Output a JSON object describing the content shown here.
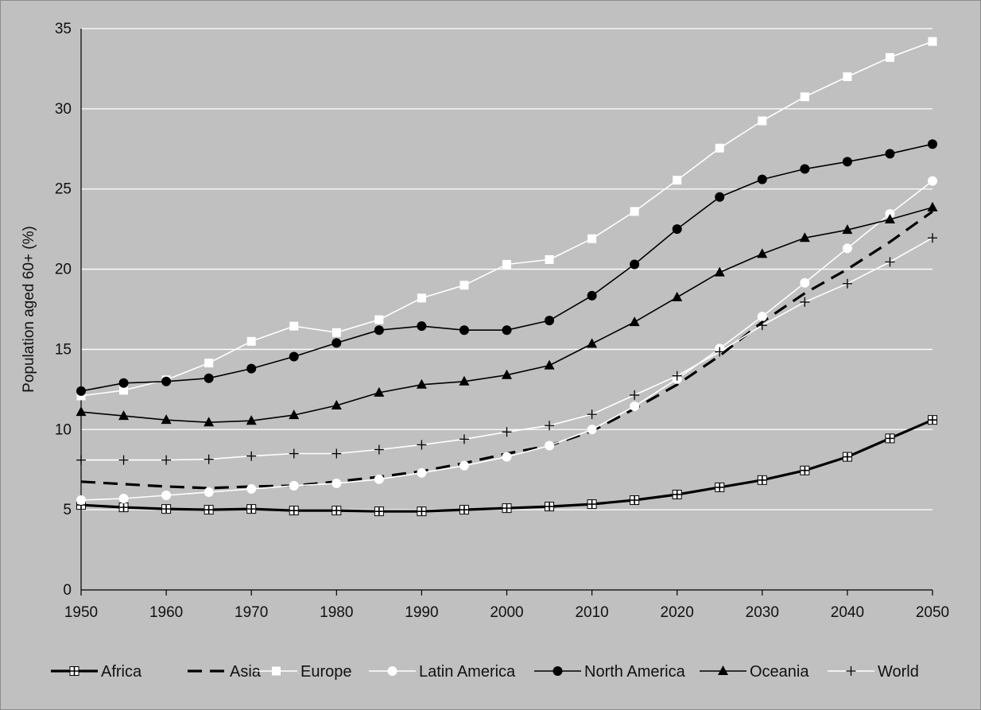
{
  "chart_data": {
    "type": "line",
    "ylabel": "Population aged 60+ (%)",
    "xlabel": "",
    "xlim": [
      1950,
      2050
    ],
    "ylim": [
      0,
      35
    ],
    "x_ticks": [
      1950,
      1960,
      1970,
      1980,
      1990,
      2000,
      2010,
      2020,
      2030,
      2040,
      2050
    ],
    "y_ticks": [
      0,
      5,
      10,
      15,
      20,
      25,
      30,
      35
    ],
    "grid": "horizontal",
    "legend_position": "bottom",
    "background_color": "#c0c0c0",
    "x": [
      1950,
      1955,
      1960,
      1965,
      1970,
      1975,
      1980,
      1985,
      1990,
      1995,
      2000,
      2005,
      2010,
      2015,
      2020,
      2025,
      2030,
      2035,
      2040,
      2045,
      2050
    ],
    "series": [
      {
        "name": "Africa",
        "color": "#000000",
        "line": "solid-thick",
        "marker": "plus-square",
        "values": [
          5.3,
          5.15,
          5.05,
          5.0,
          5.05,
          4.95,
          4.95,
          4.9,
          4.9,
          5.0,
          5.1,
          5.2,
          5.35,
          5.6,
          5.95,
          6.4,
          6.85,
          7.45,
          8.3,
          9.45,
          10.6
        ]
      },
      {
        "name": "Asia",
        "color": "#000000",
        "line": "dashed-thick",
        "marker": "none",
        "values": [
          6.75,
          6.6,
          6.45,
          6.35,
          6.45,
          6.5,
          6.75,
          7.05,
          7.4,
          7.9,
          8.5,
          9.0,
          9.9,
          11.3,
          12.8,
          14.6,
          16.7,
          18.5,
          20.0,
          21.7,
          23.6
        ]
      },
      {
        "name": "Europe",
        "color": "#ffffff",
        "line": "solid-thin",
        "marker": "square",
        "values": [
          12.1,
          12.45,
          13.1,
          14.15,
          15.5,
          16.45,
          16.05,
          16.85,
          18.2,
          19.0,
          20.3,
          20.6,
          21.9,
          23.6,
          25.55,
          27.55,
          29.25,
          30.75,
          32.0,
          33.2,
          34.2
        ]
      },
      {
        "name": "Latin America",
        "color": "#ffffff",
        "line": "solid-thin",
        "marker": "circle",
        "values": [
          5.6,
          5.7,
          5.9,
          6.1,
          6.3,
          6.5,
          6.65,
          6.9,
          7.3,
          7.75,
          8.3,
          9.0,
          10.0,
          11.45,
          13.15,
          15.05,
          17.05,
          19.15,
          21.3,
          23.45,
          25.5
        ]
      },
      {
        "name": "North America",
        "color": "#000000",
        "line": "solid-thin",
        "marker": "circle",
        "values": [
          12.4,
          12.9,
          13.0,
          13.2,
          13.8,
          14.55,
          15.4,
          16.2,
          16.45,
          16.2,
          16.2,
          16.8,
          18.35,
          20.3,
          22.5,
          24.5,
          25.6,
          26.25,
          26.7,
          27.2,
          27.8
        ]
      },
      {
        "name": "Oceania",
        "color": "#000000",
        "line": "solid-thin",
        "marker": "triangle",
        "values": [
          11.1,
          10.85,
          10.6,
          10.45,
          10.55,
          10.9,
          11.5,
          12.3,
          12.8,
          13.0,
          13.4,
          14.0,
          15.35,
          16.7,
          18.25,
          19.8,
          20.95,
          21.95,
          22.45,
          23.1,
          23.85
        ]
      },
      {
        "name": "World",
        "color": "#ffffff",
        "line": "solid-thin",
        "marker": "plus",
        "values": [
          8.1,
          8.1,
          8.1,
          8.15,
          8.35,
          8.5,
          8.5,
          8.75,
          9.05,
          9.4,
          9.85,
          10.25,
          10.95,
          12.15,
          13.35,
          14.85,
          16.5,
          17.95,
          19.1,
          20.45,
          21.95
        ]
      }
    ]
  }
}
